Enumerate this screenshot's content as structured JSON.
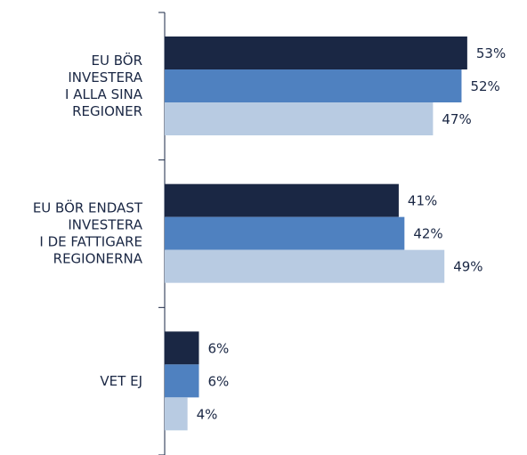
{
  "chart_data": {
    "type": "hbar",
    "categories": [
      "EU BÖR\nINVESTERA\nI ALLA SINA\nREGIONER",
      "EU BÖR ENDAST\nINVESTERA\nI DE FATTIGARE\nREGIONERNA",
      "VET EJ"
    ],
    "series": [
      {
        "color": "#1a2744",
        "values": [
          53,
          41,
          6
        ],
        "value_labels": [
          "53%",
          "41%",
          "6%"
        ]
      },
      {
        "color": "#4f81c0",
        "values": [
          52,
          42,
          6
        ],
        "value_labels": [
          "52%",
          "42%",
          "6%"
        ]
      },
      {
        "color": "#b8cbe2",
        "values": [
          47,
          49,
          4
        ],
        "value_labels": [
          "47%",
          "49%",
          "4%"
        ]
      }
    ],
    "xlim": [
      0,
      63
    ]
  }
}
